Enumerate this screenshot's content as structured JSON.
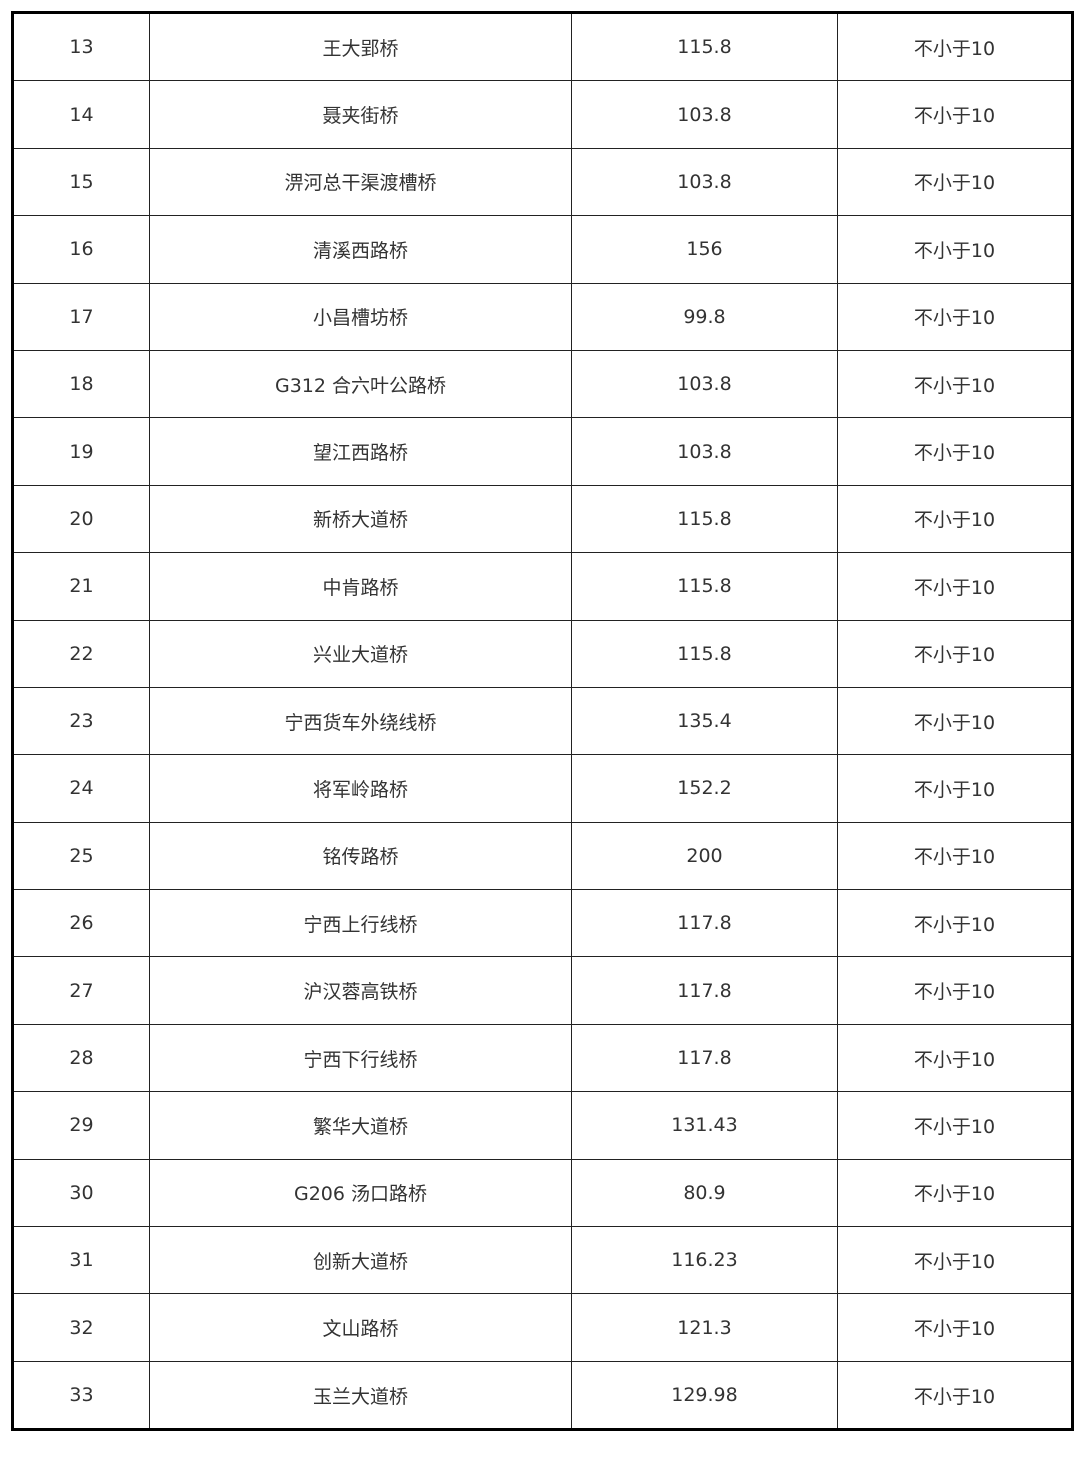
{
  "rows": [
    {
      "no": "13",
      "name": "王大郢桥",
      "value": "115.8",
      "req": "不小于10"
    },
    {
      "no": "14",
      "name": "聂夹街桥",
      "value": "103.8",
      "req": "不小于10"
    },
    {
      "no": "15",
      "name": "淠河总干渠渡槽桥",
      "value": "103.8",
      "req": "不小于10"
    },
    {
      "no": "16",
      "name": "清溪西路桥",
      "value": "156",
      "req": "不小于10"
    },
    {
      "no": "17",
      "name": "小昌槽坊桥",
      "value": "99.8",
      "req": "不小于10"
    },
    {
      "no": "18",
      "name": "G312 合六叶公路桥",
      "value": "103.8",
      "req": "不小于10"
    },
    {
      "no": "19",
      "name": "望江西路桥",
      "value": "103.8",
      "req": "不小于10"
    },
    {
      "no": "20",
      "name": "新桥大道桥",
      "value": "115.8",
      "req": "不小于10"
    },
    {
      "no": "21",
      "name": "中肯路桥",
      "value": "115.8",
      "req": "不小于10"
    },
    {
      "no": "22",
      "name": "兴业大道桥",
      "value": "115.8",
      "req": "不小于10"
    },
    {
      "no": "23",
      "name": "宁西货车外绕线桥",
      "value": "135.4",
      "req": "不小于10"
    },
    {
      "no": "24",
      "name": "将军岭路桥",
      "value": "152.2",
      "req": "不小于10"
    },
    {
      "no": "25",
      "name": "铭传路桥",
      "value": "200",
      "req": "不小于10"
    },
    {
      "no": "26",
      "name": "宁西上行线桥",
      "value": "117.8",
      "req": "不小于10"
    },
    {
      "no": "27",
      "name": "沪汉蓉高铁桥",
      "value": "117.8",
      "req": "不小于10"
    },
    {
      "no": "28",
      "name": "宁西下行线桥",
      "value": "117.8",
      "req": "不小于10"
    },
    {
      "no": "29",
      "name": "繁华大道桥",
      "value": "131.43",
      "req": "不小于10"
    },
    {
      "no": "30",
      "name": "G206 汤口路桥",
      "value": "80.9",
      "req": "不小于10"
    },
    {
      "no": "31",
      "name": "创新大道桥",
      "value": "116.23",
      "req": "不小于10"
    },
    {
      "no": "32",
      "name": "文山路桥",
      "value": "121.3",
      "req": "不小于10"
    },
    {
      "no": "33",
      "name": "玉兰大道桥",
      "value": "129.98",
      "req": "不小于10"
    }
  ]
}
